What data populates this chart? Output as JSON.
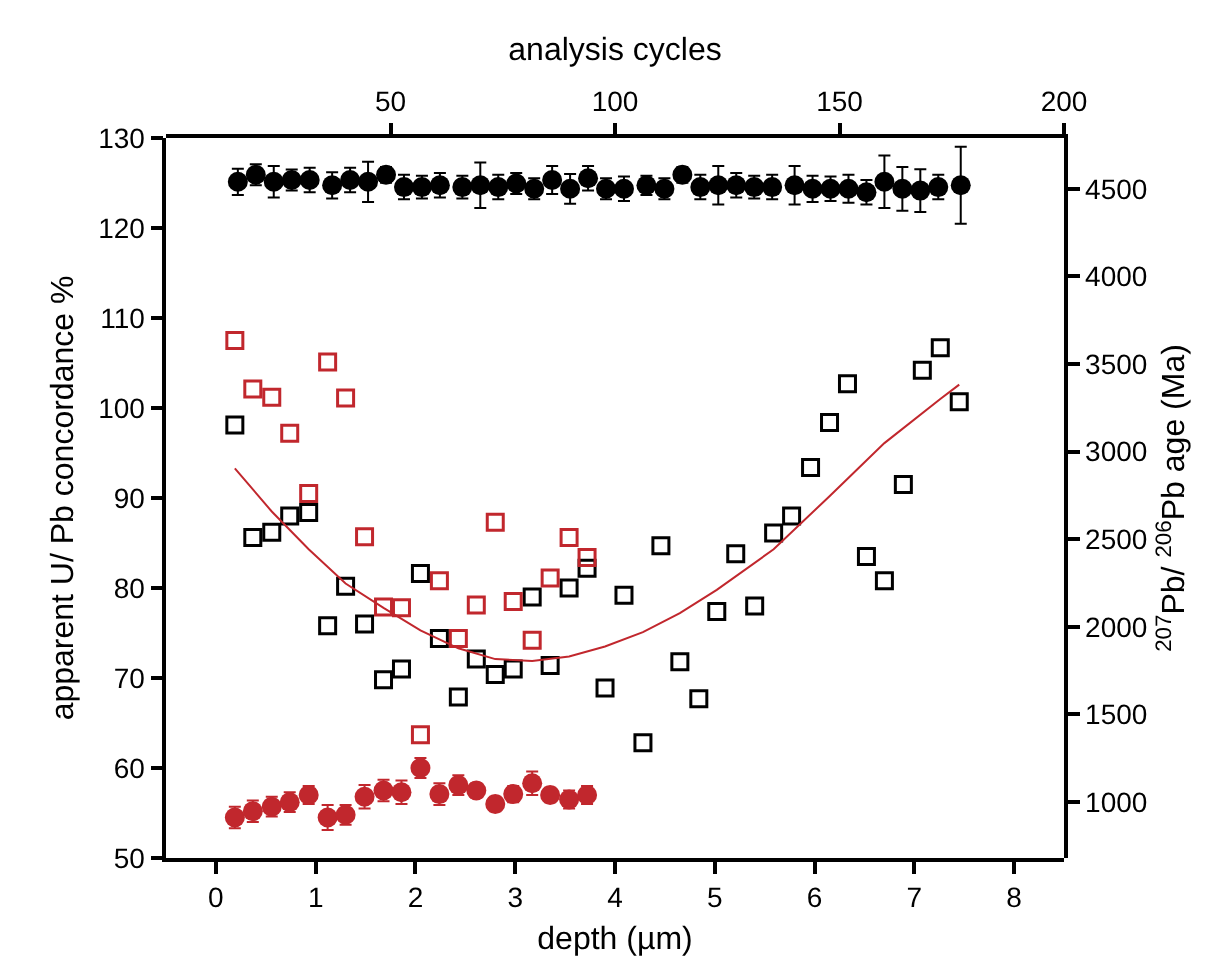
{
  "chart_data": [
    {
      "type": "scatter",
      "xlabel": "depth (µm)",
      "ylabel": "apparent U/ Pb concordance %",
      "xlim": [
        -0.5,
        8.5
      ],
      "xticks": [
        0,
        1,
        2,
        3,
        4,
        5,
        6,
        7,
        8
      ],
      "ylim": [
        50,
        130
      ],
      "yticks": [
        50,
        60,
        70,
        80,
        90,
        100,
        110,
        120,
        130
      ],
      "grid": false,
      "series": [
        {
          "marker": "circle",
          "color": "#c1272d",
          "x": [
            0.19,
            0.37,
            0.56,
            0.74,
            0.93,
            1.12,
            1.3,
            1.49,
            1.68,
            1.86,
            2.05,
            2.24,
            2.43,
            2.61,
            2.8,
            2.98,
            3.17,
            3.35,
            3.54,
            3.72
          ],
          "values": [
            54.5,
            55.2,
            55.7,
            56.2,
            57.0,
            54.5,
            54.8,
            56.8,
            57.5,
            57.3,
            60.0,
            57.1,
            58.1,
            57.5,
            56.0,
            57.1,
            58.3,
            57.0,
            56.5,
            57.0
          ],
          "errors": [
            1.2,
            1.2,
            1.1,
            1.1,
            1.0,
            1.4,
            1.1,
            1.3,
            1.2,
            1.3,
            1.1,
            1.2,
            1.1,
            0.8,
            0.8,
            0.9,
            1.3,
            0.8,
            1.0,
            1.0
          ]
        },
        {
          "marker": "square",
          "color": "#000000",
          "x": [
            0.19,
            0.37,
            0.56,
            0.74,
            0.93,
            1.12,
            1.3,
            1.49,
            1.68,
            1.86,
            2.05,
            2.24,
            2.43,
            2.61,
            2.8,
            2.98,
            3.17,
            3.35,
            3.54,
            3.72,
            3.9,
            4.09,
            4.28,
            4.46,
            4.65,
            4.84,
            5.02,
            5.21,
            5.4,
            5.59,
            5.77,
            5.96,
            6.15,
            6.33,
            6.52,
            6.7,
            6.89,
            7.08,
            7.26,
            7.45
          ],
          "values": [
            98.1,
            85.6,
            86.2,
            88.0,
            88.4,
            75.8,
            80.2,
            76.0,
            69.8,
            71.0,
            81.6,
            74.4,
            67.9,
            72.1,
            70.4,
            71.0,
            79.0,
            71.4,
            80.0,
            82.2,
            68.9,
            79.2,
            62.8,
            84.7,
            71.8,
            67.7,
            77.4,
            83.8,
            78.0,
            86.1,
            88.0,
            93.4,
            98.4,
            102.7,
            83.5,
            80.8,
            91.5,
            104.2,
            106.7,
            100.7
          ]
        },
        {
          "marker": "square",
          "color": "#c1272d",
          "x": [
            0.19,
            0.37,
            0.56,
            0.74,
            0.93,
            1.12,
            1.3,
            1.49,
            1.68,
            1.86,
            2.05,
            2.24,
            2.43,
            2.61,
            2.8,
            2.98,
            3.17,
            3.35,
            3.54,
            3.72
          ],
          "values": [
            107.5,
            102.1,
            101.2,
            97.2,
            90.5,
            105.1,
            101.1,
            85.7,
            77.9,
            77.8,
            63.7,
            80.8,
            74.4,
            78.1,
            87.3,
            78.5,
            74.2,
            81.1,
            85.6,
            83.4
          ]
        },
        {
          "type": "line",
          "marker": "none",
          "color": "#c1272d",
          "x": [
            0.19,
            0.56,
            0.93,
            1.3,
            1.68,
            2.05,
            2.43,
            2.8,
            3.17,
            3.54,
            3.9,
            4.28,
            4.65,
            5.02,
            5.59,
            6.15,
            6.7,
            7.26,
            7.45
          ],
          "values": [
            93.3,
            88.5,
            84.3,
            80.5,
            77.8,
            75.3,
            73.3,
            72.1,
            71.9,
            72.4,
            73.5,
            75.1,
            77.2,
            79.8,
            84.3,
            90.2,
            96.1,
            101.0,
            102.6
          ]
        }
      ]
    },
    {
      "type": "scatter",
      "xlabel": "analysis cycles",
      "ylabel": "$^{207}$Pb/ $^{206}$Pb age (Ma)",
      "xlim": [
        0,
        200
      ],
      "xticks": [
        50,
        100,
        150,
        200
      ],
      "ylim": [
        680,
        4790
      ],
      "yticks": [
        1000,
        1500,
        2000,
        2500,
        3000,
        3500,
        4000,
        4500
      ],
      "grid": false,
      "series": [
        {
          "marker": "circle",
          "color": "#000000",
          "x": [
            16,
            20,
            24,
            28,
            32,
            37,
            41,
            45,
            49,
            53,
            57,
            61,
            66,
            70,
            74,
            78,
            82,
            86,
            90,
            94,
            98,
            102,
            107,
            111,
            115,
            119,
            123,
            127,
            131,
            135,
            140,
            144,
            148,
            152,
            156,
            160,
            164,
            168,
            172,
            177
          ],
          "values": [
            4540,
            4580,
            4540,
            4550,
            4550,
            4520,
            4550,
            4540,
            4580,
            4510,
            4510,
            4520,
            4510,
            4520,
            4510,
            4530,
            4500,
            4550,
            4500,
            4560,
            4500,
            4500,
            4520,
            4500,
            4580,
            4510,
            4520,
            4520,
            4510,
            4510,
            4520,
            4500,
            4500,
            4500,
            4480,
            4540,
            4500,
            4490,
            4510,
            4520
          ],
          "errors": [
            75,
            60,
            90,
            60,
            70,
            75,
            70,
            115,
            45,
            70,
            65,
            70,
            65,
            130,
            70,
            60,
            60,
            80,
            85,
            70,
            60,
            70,
            55,
            60,
            45,
            70,
            110,
            70,
            65,
            70,
            110,
            75,
            70,
            80,
            70,
            150,
            125,
            122,
            70,
            220
          ]
        }
      ]
    }
  ]
}
